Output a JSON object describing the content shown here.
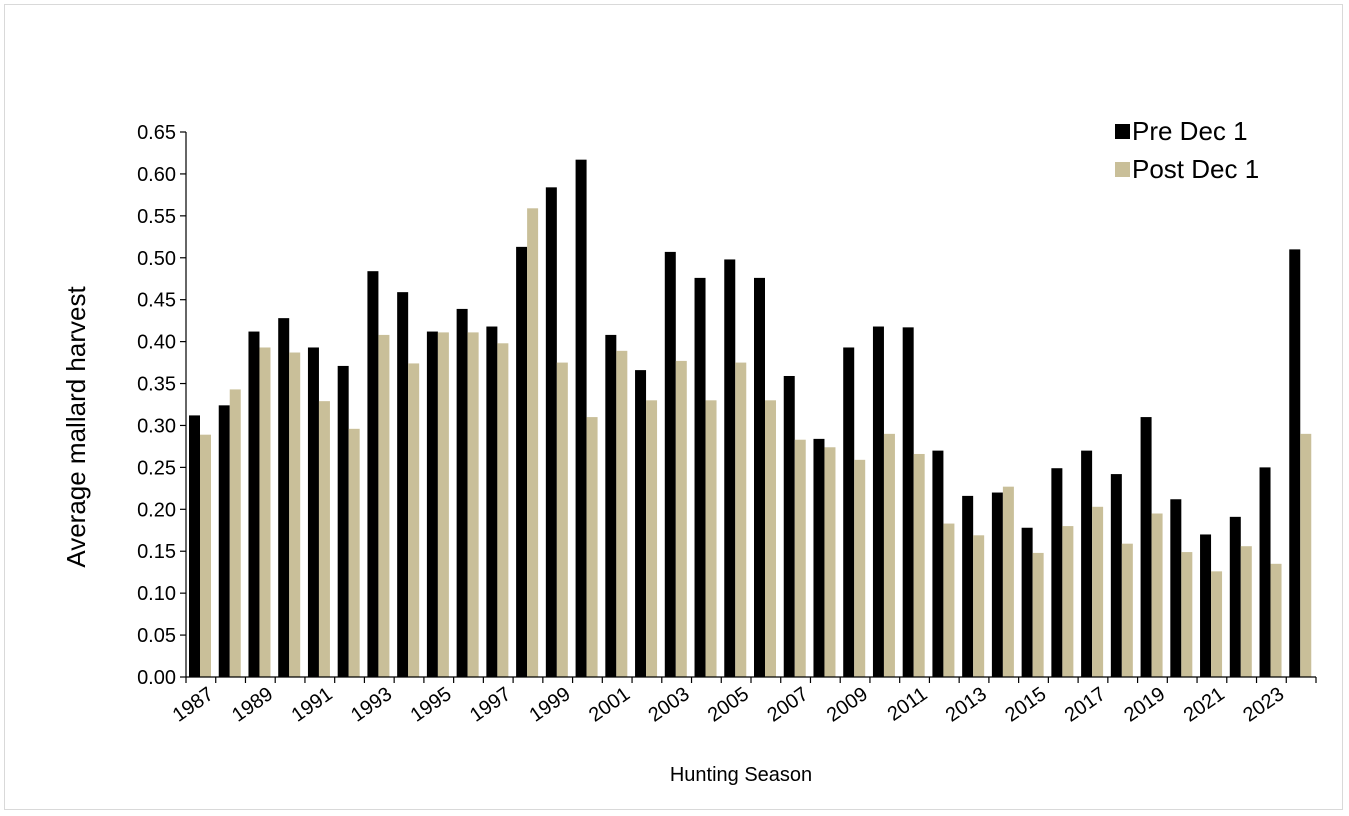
{
  "chart_data": {
    "type": "bar",
    "title": "",
    "xlabel": "Hunting Season",
    "ylabel": "Average mallard harvest",
    "ylim": [
      0,
      0.65
    ],
    "yticks": [
      "0.00",
      "0.05",
      "0.10",
      "0.15",
      "0.20",
      "0.25",
      "0.30",
      "0.35",
      "0.40",
      "0.45",
      "0.50",
      "0.55",
      "0.60",
      "0.65"
    ],
    "categories": [
      1987,
      1988,
      1989,
      1990,
      1991,
      1992,
      1993,
      1994,
      1995,
      1996,
      1997,
      1998,
      1999,
      2000,
      2001,
      2002,
      2003,
      2004,
      2005,
      2006,
      2007,
      2008,
      2009,
      2010,
      2011,
      2012,
      2013,
      2014,
      2015,
      2016,
      2017,
      2018,
      2019,
      2020,
      2021,
      2022,
      2023,
      2024
    ],
    "xtick_labels": [
      "1987",
      "1989",
      "1991",
      "1993",
      "1995",
      "1997",
      "1999",
      "2001",
      "2003",
      "2005",
      "2007",
      "2009",
      "2011",
      "2013",
      "2015",
      "2017",
      "2019",
      "2021",
      "2023"
    ],
    "legend_position": "top-right",
    "grid": false,
    "series": [
      {
        "name": "Pre Dec 1",
        "color": "#000000",
        "values": [
          0.312,
          0.324,
          0.412,
          0.428,
          0.393,
          0.371,
          0.484,
          0.459,
          0.412,
          0.439,
          0.418,
          0.513,
          0.584,
          0.617,
          0.408,
          0.366,
          0.507,
          0.476,
          0.498,
          0.476,
          0.359,
          0.284,
          0.393,
          0.418,
          0.417,
          0.27,
          0.216,
          0.22,
          0.178,
          0.249,
          0.27,
          0.242,
          0.31,
          0.212,
          0.17,
          0.191,
          0.25,
          0.51
        ]
      },
      {
        "name": "Post Dec 1",
        "color": "#c9bf99",
        "values": [
          0.289,
          0.343,
          0.393,
          0.387,
          0.329,
          0.296,
          0.408,
          0.374,
          0.411,
          0.411,
          0.398,
          0.559,
          0.375,
          0.31,
          0.389,
          0.33,
          0.377,
          0.33,
          0.375,
          0.33,
          0.283,
          0.274,
          0.259,
          0.29,
          0.266,
          0.183,
          0.169,
          0.227,
          0.148,
          0.18,
          0.203,
          0.159,
          0.195,
          0.149,
          0.126,
          0.156,
          0.135,
          0.29
        ]
      }
    ]
  }
}
